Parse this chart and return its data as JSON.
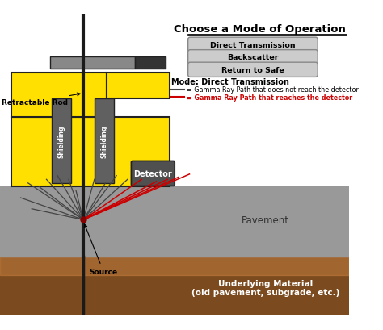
{
  "title": "Choose a Mode of Operation",
  "bg_color": "#ffffff",
  "pavement_color": "#999999",
  "ground_color": "#7B4A1E",
  "ground_color2": "#C88040",
  "yellow_body": "#FFE000",
  "shielding_color": "#606060",
  "handle_gray": "#888888",
  "handle_dark": "#333333",
  "detector_color": "#505050",
  "rod_color": "#1a1a1a",
  "button_fill": "#cccccc",
  "button_edge": "#888888",
  "button_labels": [
    "Direct Transmission",
    "Backscatter",
    "Return to Safe"
  ],
  "mode_text": "Mode: Direct Transmission",
  "legend_black": "= Gamma Ray Path that does not reach the detector",
  "legend_red": "= Gamma Ray Path that reaches the detector",
  "label_retractable": "Retractable Rod",
  "label_source": "Source",
  "label_detector": "Detector",
  "label_pavement": "Pavement",
  "label_underlying": "Underlying Material\n(old pavement, subgrade, etc.)",
  "label_shielding": "Shielding",
  "outline_color": "#222222"
}
